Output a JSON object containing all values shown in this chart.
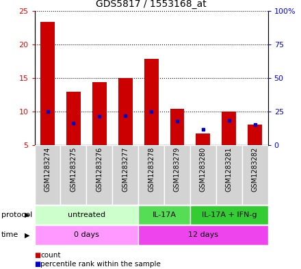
{
  "title": "GDS5817 / 1553168_at",
  "samples": [
    "GSM1283274",
    "GSM1283275",
    "GSM1283276",
    "GSM1283277",
    "GSM1283278",
    "GSM1283279",
    "GSM1283280",
    "GSM1283281",
    "GSM1283282"
  ],
  "red_values": [
    23.3,
    13.0,
    14.4,
    15.0,
    17.8,
    10.4,
    6.8,
    10.0,
    8.1
  ],
  "blue_values": [
    10.0,
    8.3,
    9.3,
    9.4,
    10.0,
    8.6,
    7.4,
    8.7,
    8.1
  ],
  "ylim_left": [
    5,
    25
  ],
  "ylim_right": [
    0,
    100
  ],
  "yticks_left": [
    5,
    10,
    15,
    20,
    25
  ],
  "yticks_right": [
    0,
    25,
    50,
    75,
    100
  ],
  "ytick_labels_left": [
    "5",
    "10",
    "15",
    "20",
    "25"
  ],
  "ytick_labels_right": [
    "0",
    "25",
    "50",
    "75",
    "100%"
  ],
  "protocol_groups": [
    {
      "label": "untreated",
      "start": 0,
      "end": 4,
      "color": "#ccffcc"
    },
    {
      "label": "IL-17A",
      "start": 4,
      "end": 6,
      "color": "#55dd55"
    },
    {
      "label": "IL-17A + IFN-g",
      "start": 6,
      "end": 9,
      "color": "#33cc33"
    }
  ],
  "time_groups": [
    {
      "label": "0 days",
      "start": 0,
      "end": 4,
      "color": "#ff99ff"
    },
    {
      "label": "12 days",
      "start": 4,
      "end": 9,
      "color": "#ee44ee"
    }
  ],
  "bar_color": "#cc0000",
  "dot_color": "#0000cc",
  "bar_width": 0.55,
  "protocol_label": "protocol",
  "time_label": "time",
  "legend_count": "count",
  "legend_percentile": "percentile rank within the sample",
  "col_bg_color": "#d3d3d3",
  "plot_bg_color": "#ffffff"
}
